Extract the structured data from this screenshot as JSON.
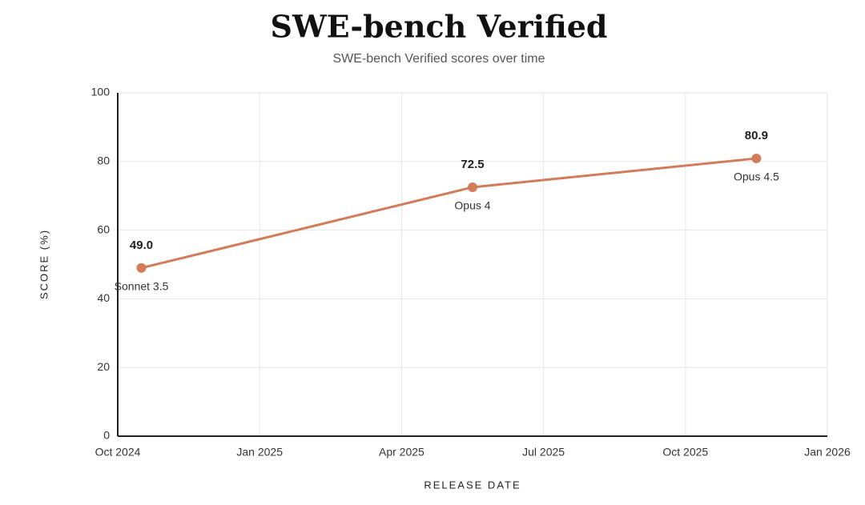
{
  "chart_data": {
    "type": "line",
    "title": "SWE-bench Verified",
    "subtitle": "SWE-bench Verified scores over time",
    "x_label": "RELEASE DATE",
    "y_label": "SCORE (%)",
    "x": [
      "2024-10",
      "2025-05",
      "2025-11"
    ],
    "series": [
      {
        "name": "SWE-bench Verified",
        "color": "#d47b5a",
        "values": [
          49.0,
          72.5,
          80.9
        ],
        "value_labels": [
          "49.0",
          "72.5",
          "80.9"
        ],
        "point_labels": [
          "Sonnet 3.5",
          "Opus 4",
          "Opus 4.5"
        ]
      }
    ],
    "xlim": [
      "2024-10",
      "2026-01"
    ],
    "xticks": [
      {
        "value": "2024-10",
        "label": "Oct 2024"
      },
      {
        "value": "2025-01",
        "label": "Jan 2025"
      },
      {
        "value": "2025-04",
        "label": "Apr 2025"
      },
      {
        "value": "2025-07",
        "label": "Jul 2025"
      },
      {
        "value": "2025-10",
        "label": "Oct 2025"
      },
      {
        "value": "2026-01",
        "label": "Jan 2026"
      }
    ],
    "ylim": [
      0,
      100
    ],
    "yticks": [
      0,
      20,
      40,
      60,
      80,
      100
    ],
    "grid": true
  }
}
